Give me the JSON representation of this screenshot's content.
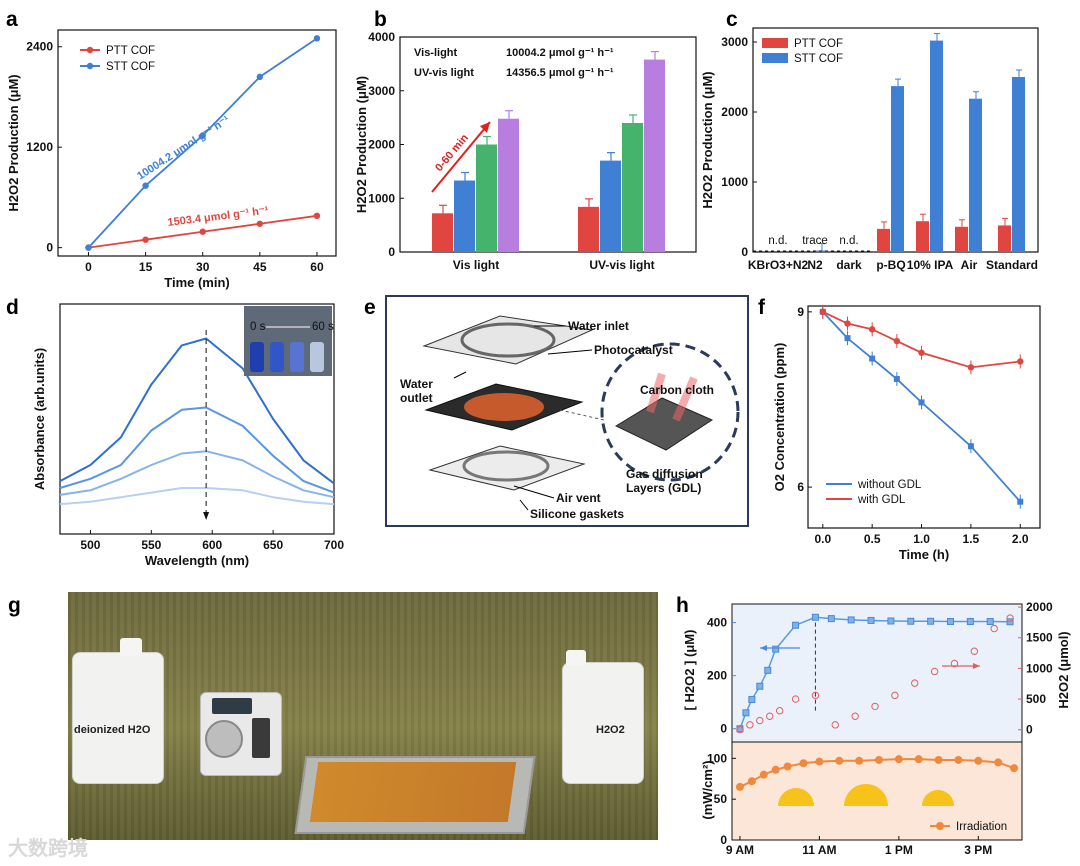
{
  "panels": {
    "a": "a",
    "b": "b",
    "c": "c",
    "d": "d",
    "e": "e",
    "f": "f",
    "g": "g",
    "h": "h"
  },
  "colors": {
    "red": "#e0463f",
    "blue": "#3f7fd4",
    "green": "#46b36c",
    "purple": "#b77ee0",
    "orange": "#f0893d",
    "lightblue": "#7fb0e6"
  },
  "chart_data": [
    {
      "id": "a",
      "type": "line",
      "xlabel": "Time (min)",
      "ylabel": "H2O2 Production (μM)",
      "xlim": [
        -8,
        65
      ],
      "ylim": [
        -100,
        2600
      ],
      "xticks": [
        "0",
        "15",
        "30",
        "45",
        "60"
      ],
      "yticks": [
        "0",
        "1200",
        "2400"
      ],
      "legend": "top-left",
      "series": [
        {
          "name": "PTT COF",
          "x": [
            0,
            15,
            30,
            45,
            60
          ],
          "y": [
            0,
            95,
            190,
            285,
            380
          ],
          "color": "#e0463f"
        },
        {
          "name": "STT COF",
          "x": [
            0,
            15,
            30,
            45,
            60
          ],
          "y": [
            0,
            740,
            1340,
            2040,
            2500
          ],
          "color": "#3f7fd4"
        }
      ],
      "annotations": [
        "10004.2 μmol g⁻¹ h⁻¹",
        "1503.4 μmol g⁻¹ h⁻¹"
      ]
    },
    {
      "id": "b",
      "type": "bar",
      "ylabel": "H2O2 Production (μM)",
      "categories": [
        "Vis light",
        "UV-vis light"
      ],
      "ylim": [
        0,
        4000
      ],
      "yticks": [
        "0",
        "1000",
        "2000",
        "3000",
        "4000"
      ],
      "series": [
        {
          "values": [
            720,
            840
          ],
          "color": "#e0463f"
        },
        {
          "values": [
            1330,
            1700
          ],
          "color": "#3f7fd4"
        },
        {
          "values": [
            2000,
            2400
          ],
          "color": "#46b36c"
        },
        {
          "values": [
            2480,
            3580
          ],
          "color": "#b77ee0"
        }
      ],
      "text": {
        "row1_label": "Vis-light",
        "row1_value": "10004.2 μmol g⁻¹ h⁻¹",
        "row2_label": "UV-vis light",
        "row2_value": "14356.5 μmol g⁻¹ h⁻¹",
        "arrow": "0-60 min"
      }
    },
    {
      "id": "c",
      "type": "bar",
      "ylabel": "H2O2 Production (μM)",
      "categories": [
        "KBrO3+N2",
        "N2",
        "dark",
        "p-BQ",
        "10% IPA",
        "Air",
        "Standard"
      ],
      "ylim": [
        0,
        3200
      ],
      "yticks": [
        "0",
        "1000",
        "2000",
        "3000"
      ],
      "legend": "top-left",
      "series": [
        {
          "name": "PTT COF",
          "values": [
            0,
            0,
            0,
            330,
            440,
            360,
            380
          ],
          "color": "#e0463f"
        },
        {
          "name": "STT COF",
          "values": [
            0,
            20,
            0,
            2370,
            3020,
            2190,
            2500
          ],
          "color": "#3f7fd4"
        }
      ],
      "annotations": [
        "n.d.",
        "trace",
        "n.d."
      ]
    },
    {
      "id": "d",
      "type": "line",
      "xlabel": "Wavelength (nm)",
      "ylabel": "Absorbance (arb.units)",
      "xlim": [
        475,
        700
      ],
      "xticks": [
        "500",
        "550",
        "600",
        "650",
        "700"
      ],
      "inset": {
        "start": "0 s",
        "end": "60 s"
      },
      "series": [
        {
          "x": [
            475,
            500,
            525,
            550,
            575,
            595,
            625,
            650,
            675,
            700
          ],
          "y": [
            0.23,
            0.3,
            0.42,
            0.65,
            0.82,
            0.85,
            0.72,
            0.5,
            0.32,
            0.22
          ]
        },
        {
          "x": [
            475,
            500,
            525,
            550,
            575,
            595,
            625,
            650,
            675,
            700
          ],
          "y": [
            0.2,
            0.24,
            0.3,
            0.45,
            0.54,
            0.55,
            0.47,
            0.34,
            0.23,
            0.18
          ]
        },
        {
          "x": [
            475,
            500,
            525,
            550,
            575,
            595,
            625,
            650,
            675,
            700
          ],
          "y": [
            0.17,
            0.19,
            0.24,
            0.3,
            0.35,
            0.36,
            0.32,
            0.25,
            0.19,
            0.16
          ]
        },
        {
          "x": [
            475,
            500,
            525,
            550,
            575,
            595,
            625,
            650,
            675,
            700
          ],
          "y": [
            0.13,
            0.14,
            0.16,
            0.18,
            0.2,
            0.2,
            0.19,
            0.16,
            0.14,
            0.13
          ]
        }
      ]
    },
    {
      "id": "f",
      "type": "line",
      "xlabel": "Time (h)",
      "ylabel": "O2 Concentration (ppm)",
      "xlim": [
        -0.15,
        2.2
      ],
      "ylim": [
        5.3,
        9.1
      ],
      "xticks": [
        "0.0",
        "0.5",
        "1.0",
        "1.5",
        "2.0"
      ],
      "yticks": [
        "6",
        "9"
      ],
      "legend": "bottom-left",
      "series": [
        {
          "name": "without GDL",
          "x": [
            0,
            0.25,
            0.5,
            0.75,
            1.0,
            1.5,
            2.0
          ],
          "y": [
            9.0,
            8.55,
            8.2,
            7.85,
            7.45,
            6.7,
            5.75
          ],
          "color": "#3f7fd4"
        },
        {
          "name": "with GDL",
          "x": [
            0,
            0.25,
            0.5,
            0.75,
            1.0,
            1.5,
            2.0
          ],
          "y": [
            9.0,
            8.8,
            8.7,
            8.5,
            8.3,
            8.05,
            8.15
          ],
          "color": "#e0463f"
        }
      ]
    },
    {
      "id": "h",
      "type": "scatter",
      "xticks": [
        "9 AM",
        "11 AM",
        "1 PM",
        "3 PM"
      ],
      "top": {
        "left_label": "[ H2O2 ] (μM)",
        "right_label": "H2O2 (μmol)",
        "left_ticks": [
          "0",
          "200",
          "400"
        ],
        "right_ticks": [
          "0",
          "500",
          "1000",
          "1500",
          "2000"
        ],
        "concentration": {
          "x": [
            9.0,
            9.15,
            9.3,
            9.5,
            9.7,
            9.9,
            10.4,
            10.9,
            11.3,
            11.8,
            12.3,
            12.8,
            13.3,
            13.8,
            14.3,
            14.8,
            15.3,
            15.8
          ],
          "y": [
            0,
            60,
            110,
            160,
            220,
            300,
            390,
            420,
            415,
            410,
            408,
            406,
            405,
            405,
            404,
            404,
            404,
            403
          ]
        },
        "amount": {
          "x": [
            9.0,
            9.25,
            9.5,
            9.75,
            10.0,
            10.4,
            10.9,
            11.4,
            11.9,
            12.4,
            12.9,
            13.4,
            13.9,
            14.4,
            14.9,
            15.4,
            15.8
          ],
          "y": [
            0,
            80,
            150,
            220,
            310,
            500,
            560,
            80,
            220,
            380,
            560,
            760,
            950,
            1080,
            1280,
            1650,
            1820
          ]
        }
      },
      "bottom": {
        "ylabel": "(mW/cm²)",
        "yticks": [
          "0",
          "50",
          "100"
        ],
        "legend": "Irradiation",
        "irradiation": {
          "x": [
            9.0,
            9.3,
            9.6,
            9.9,
            10.2,
            10.6,
            11.0,
            11.5,
            12.0,
            12.5,
            13.0,
            13.5,
            14.0,
            14.5,
            15.0,
            15.5,
            15.9
          ],
          "y": [
            65,
            72,
            80,
            86,
            90,
            94,
            96,
            97,
            97,
            98,
            99,
            99,
            98,
            98,
            97,
            95,
            88
          ]
        }
      }
    }
  ],
  "panel_e": {
    "water_inlet": "Water inlet",
    "photocatalyst": "Photocatalyst",
    "water_outlet": "Water\noutlet",
    "carbon_cloth": "Carbon cloth",
    "gdl": "Gas diffusion\nLayers (GDL)",
    "air_vent": "Air vent",
    "gaskets": "Silicone gaskets"
  },
  "panel_g": {
    "left_bottle": "deionized H2O",
    "right_bottle": "H2O2"
  },
  "watermark": "大数跨境"
}
